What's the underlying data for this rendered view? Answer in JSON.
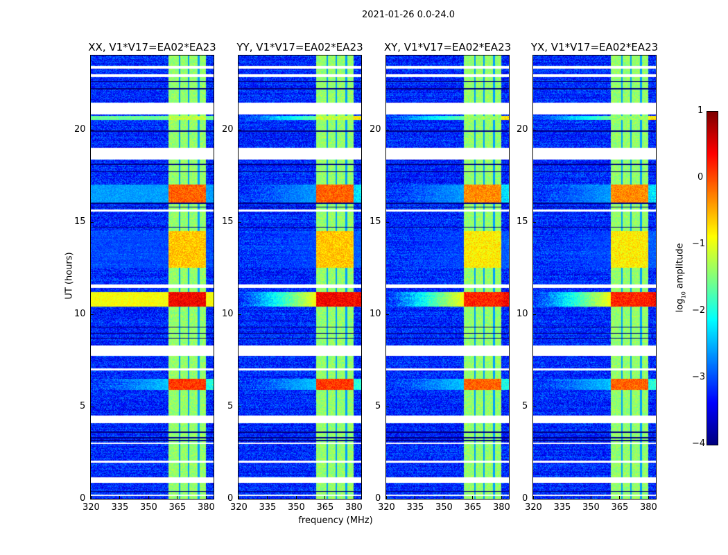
{
  "chart_data": {
    "type": "heatmap",
    "title": "2021-01-26 0.0-24.0",
    "xlabel": "frequency (MHz)",
    "ylabel": "UT (hours)",
    "xlim": [
      320,
      384
    ],
    "ylim": [
      0,
      24
    ],
    "xticks": [
      "320",
      "335",
      "350",
      "365",
      "380"
    ],
    "xtick_values": [
      320,
      335,
      350,
      365,
      380
    ],
    "yticks": [
      "0",
      "5",
      "10",
      "15",
      "20"
    ],
    "ytick_values": [
      0,
      5,
      10,
      15,
      20
    ],
    "colormap": "jet",
    "colorbar": {
      "label_prefix": "log",
      "label_sub": "10",
      "label_suffix": " amplitude",
      "range": [
        -4,
        1
      ],
      "ticks": [
        "1",
        "0",
        "−1",
        "−2",
        "−3",
        "−4"
      ],
      "tick_values": [
        1,
        0,
        -1,
        -2,
        -3,
        -4
      ]
    },
    "panels": [
      {
        "title": "XX, V1*V17=EA02*EA23",
        "pol": "XX"
      },
      {
        "title": "YY, V1*V17=EA02*EA23",
        "pol": "YY"
      },
      {
        "title": "XY, V1*V17=EA02*EA23",
        "pol": "XY"
      },
      {
        "title": "YX, V1*V17=EA02*EA23",
        "pol": "YX"
      }
    ],
    "background_level": -3.2,
    "bright_band_mhz": [
      360.5,
      380
    ],
    "band_level": -1.4,
    "band_channel_gaps_mhz": [
      366.2,
      371,
      376.2
    ],
    "flagged_hours": [
      [
        23.3,
        23.45
      ],
      [
        22.85,
        23.0
      ],
      [
        20.8,
        21.45
      ],
      [
        18.35,
        19.0
      ],
      [
        15.55,
        15.65
      ],
      [
        11.4,
        11.6
      ],
      [
        7.75,
        8.3
      ],
      [
        6.95,
        7.05
      ],
      [
        4.1,
        4.5
      ],
      [
        2.95,
        3.05
      ],
      [
        1.95,
        2.05
      ],
      [
        0.85,
        1.15
      ],
      [
        0.15,
        0.22
      ]
    ],
    "dark_rows_hours": [
      22.6,
      22.2,
      19.9,
      18.1,
      17.7,
      16.0,
      15.8,
      14.7,
      9.3,
      8.95,
      8.7,
      3.6,
      3.3,
      3.15,
      0.4
    ],
    "events": [
      {
        "hours": [
          10.4,
          11.2
        ],
        "band_level": 0.4,
        "wide_level": -0.9
      },
      {
        "hours": [
          5.9,
          6.5
        ],
        "band_level": 0.1,
        "wide_level": -2.4
      },
      {
        "hours": [
          16.0,
          17.0
        ],
        "band_level": -0.1,
        "wide_level": -2.6
      },
      {
        "hours": [
          12.5,
          14.5
        ],
        "band_level": -0.6,
        "wide_level": -3.1
      },
      {
        "hours": [
          20.5,
          20.75
        ],
        "band_level": -1.2,
        "wide_level": -1.6
      }
    ]
  }
}
